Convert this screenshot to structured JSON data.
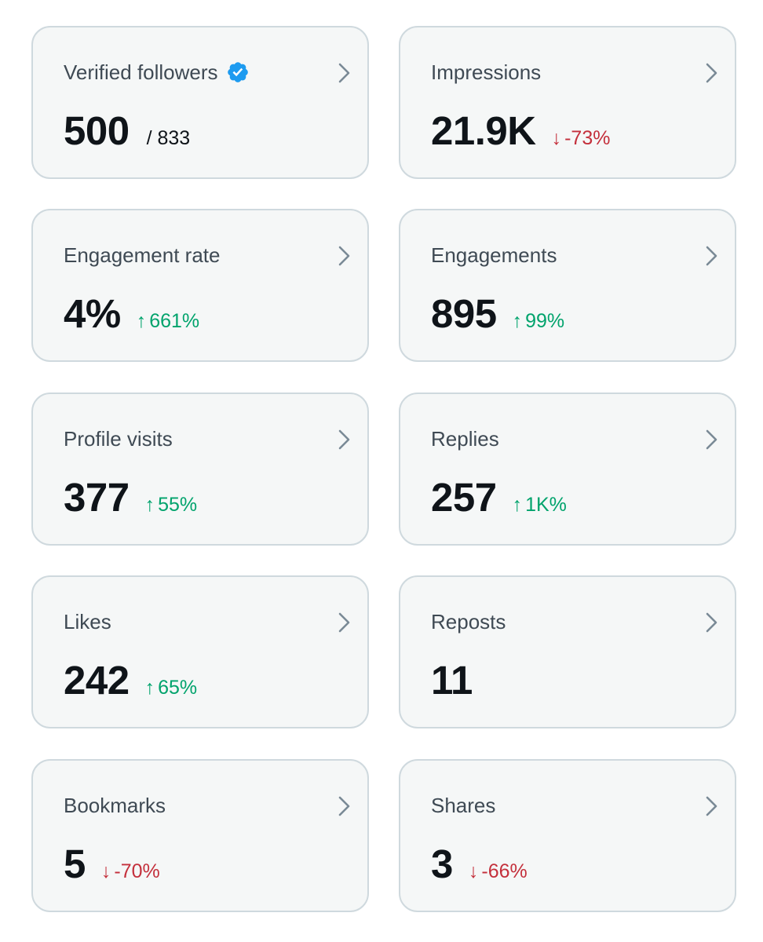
{
  "colors": {
    "card_bg": "#f5f7f7",
    "card_border": "#cfd9de",
    "title": "#3f4a54",
    "value": "#0f1419",
    "up": "#00a36c",
    "down": "#c4303c",
    "verified": "#1d9bf0",
    "chevron": "#7a8a96"
  },
  "cards": {
    "verified_followers": {
      "title": "Verified followers",
      "value": "500",
      "sub": "/ 833",
      "icon": "verified-badge-icon"
    },
    "impressions": {
      "title": "Impressions",
      "value": "21.9K",
      "delta_arrow": "↓",
      "delta": "-73%",
      "trend": "down"
    },
    "engagement_rate": {
      "title": "Engagement rate",
      "value": "4%",
      "delta_arrow": "↑",
      "delta": "661%",
      "trend": "up"
    },
    "engagements": {
      "title": "Engagements",
      "value": "895",
      "delta_arrow": "↑",
      "delta": "99%",
      "trend": "up"
    },
    "profile_visits": {
      "title": "Profile visits",
      "value": "377",
      "delta_arrow": "↑",
      "delta": "55%",
      "trend": "up"
    },
    "replies": {
      "title": "Replies",
      "value": "257",
      "delta_arrow": "↑",
      "delta": "1K%",
      "trend": "up"
    },
    "likes": {
      "title": "Likes",
      "value": "242",
      "delta_arrow": "↑",
      "delta": "65%",
      "trend": "up"
    },
    "reposts": {
      "title": "Reposts",
      "value": "11"
    },
    "bookmarks": {
      "title": "Bookmarks",
      "value": "5",
      "delta_arrow": "↓",
      "delta": "-70%",
      "trend": "down"
    },
    "shares": {
      "title": "Shares",
      "value": "3",
      "delta_arrow": "↓",
      "delta": "-66%",
      "trend": "down"
    }
  },
  "icons": {
    "chevron": "chevron-right-icon"
  }
}
